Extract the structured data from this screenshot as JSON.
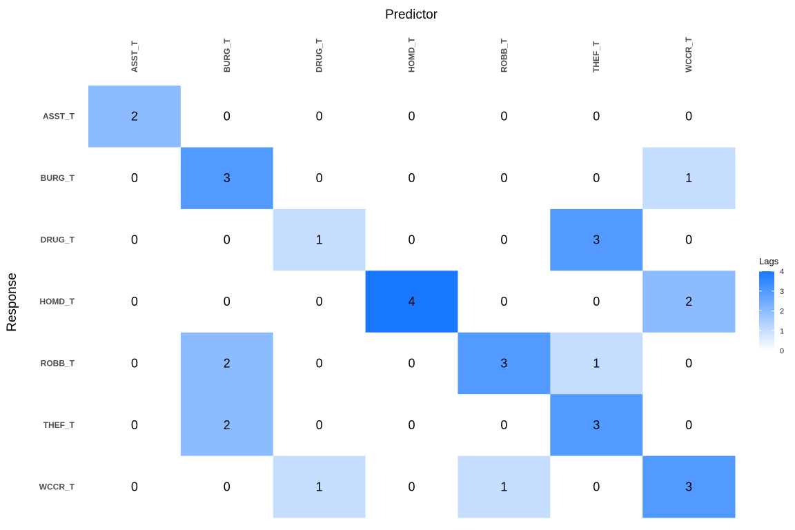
{
  "chart_data": {
    "type": "heatmap",
    "xlabel": "Predictor",
    "ylabel": "Response",
    "x_categories": [
      "ASST_T",
      "BURG_T",
      "DRUG_T",
      "HOMD_T",
      "ROBB_T",
      "THEF_T",
      "WCCR_T"
    ],
    "y_categories": [
      "ASST_T",
      "BURG_T",
      "DRUG_T",
      "HOMD_T",
      "ROBB_T",
      "THEF_T",
      "WCCR_T"
    ],
    "values": [
      [
        2,
        0,
        0,
        0,
        0,
        0,
        0
      ],
      [
        0,
        3,
        0,
        0,
        0,
        0,
        1
      ],
      [
        0,
        0,
        1,
        0,
        0,
        3,
        0
      ],
      [
        0,
        0,
        0,
        4,
        0,
        0,
        2
      ],
      [
        0,
        2,
        0,
        0,
        3,
        1,
        0
      ],
      [
        0,
        2,
        0,
        0,
        0,
        3,
        0
      ],
      [
        0,
        0,
        1,
        0,
        1,
        0,
        3
      ]
    ],
    "x_axis_position": "top",
    "legend": {
      "title": "Lags",
      "range": [
        0,
        4
      ],
      "ticks": [
        0,
        1,
        2,
        3,
        4
      ],
      "placement": "right"
    },
    "colors": {
      "low": "#ffffff",
      "high": "#1878ff"
    },
    "grid": false
  }
}
